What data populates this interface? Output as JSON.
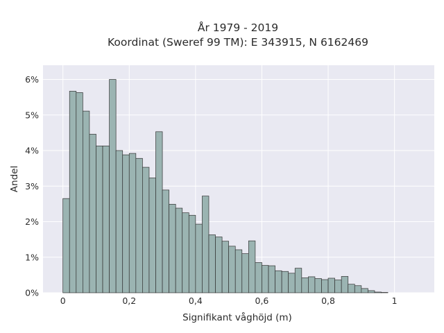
{
  "chart_data": {
    "type": "bar",
    "title_line1": "År 1979 - 2019",
    "title_line2": "Koordinat (Sweref 99 TM): E 343915, N 6162469",
    "xlabel": "Signifikant våghöjd (m)",
    "ylabel": "Andel",
    "xlim": [
      -0.06,
      1.12
    ],
    "ylim": [
      0,
      6.4
    ],
    "x_ticks": [
      0,
      0.2,
      0.4,
      0.6,
      0.8,
      1.0
    ],
    "x_tick_labels": [
      "0",
      "0,2",
      "0,4",
      "0,6",
      "0,8",
      "1"
    ],
    "y_ticks": [
      0,
      1,
      2,
      3,
      4,
      5,
      6
    ],
    "y_tick_labels": [
      "0%",
      "1%",
      "2%",
      "3%",
      "4%",
      "5%",
      "6%"
    ],
    "grid": true,
    "bin_width": 0.02,
    "bin_start": 0.0,
    "values": [
      2.65,
      5.67,
      5.63,
      5.11,
      4.46,
      4.13,
      4.13,
      6.0,
      4.0,
      3.88,
      3.92,
      3.78,
      3.53,
      3.23,
      4.53,
      2.89,
      2.49,
      2.38,
      2.25,
      2.18,
      1.93,
      2.72,
      1.63,
      1.57,
      1.45,
      1.31,
      1.21,
      1.1,
      1.46,
      0.85,
      0.77,
      0.76,
      0.62,
      0.6,
      0.55,
      0.69,
      0.42,
      0.45,
      0.4,
      0.37,
      0.41,
      0.36,
      0.46,
      0.24,
      0.2,
      0.12,
      0.06,
      0.02,
      0.01
    ]
  }
}
